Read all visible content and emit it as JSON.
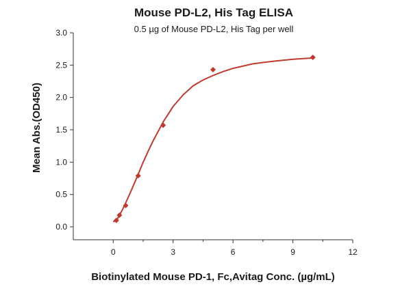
{
  "chart_data": {
    "type": "scatter",
    "title": "Mouse PD-L2, His Tag ELISA",
    "subtitle": "0.5 µg of Mouse PD-L2, His Tag per well",
    "xlabel": "Biotinylated Mouse PD-1, Fc,Avitag Conc. (µg/mL)",
    "ylabel": "Mean Abs.(OD450)",
    "xlim": [
      -2,
      12
    ],
    "ylim": [
      -0.2,
      3.0
    ],
    "x_ticks": [
      0,
      3,
      6,
      9,
      12
    ],
    "x_tick_labels": [
      "0",
      "3",
      "6",
      "9",
      "12"
    ],
    "y_ticks": [
      0.0,
      0.5,
      1.0,
      1.5,
      2.0,
      2.5,
      3.0
    ],
    "y_tick_labels": [
      "0.0",
      "0.5",
      "1.0",
      "1.5",
      "2.0",
      "2.5",
      "3.0"
    ],
    "grid": false,
    "legend": "none",
    "marker_color": "#c0392b",
    "curve_color": "#c0392b",
    "series": [
      {
        "x": [
          0.156,
          0.3125,
          0.625,
          1.25,
          2.5,
          5,
          10
        ],
        "y": [
          0.1,
          0.18,
          0.33,
          0.79,
          1.57,
          2.43,
          2.62
        ]
      }
    ],
    "fit_curve": {
      "x": [
        0,
        0.1,
        0.2,
        0.3,
        0.4,
        0.5,
        0.625,
        0.8,
        1.0,
        1.25,
        1.5,
        1.75,
        2.0,
        2.5,
        3.0,
        3.5,
        4.0,
        4.5,
        5.0,
        5.5,
        6.0,
        7.0,
        8.0,
        9.0,
        10.0
      ],
      "y": [
        0.08,
        0.09,
        0.12,
        0.17,
        0.23,
        0.29,
        0.37,
        0.49,
        0.63,
        0.81,
        1.0,
        1.17,
        1.33,
        1.62,
        1.86,
        2.04,
        2.18,
        2.27,
        2.34,
        2.4,
        2.45,
        2.52,
        2.56,
        2.59,
        2.61
      ]
    }
  }
}
